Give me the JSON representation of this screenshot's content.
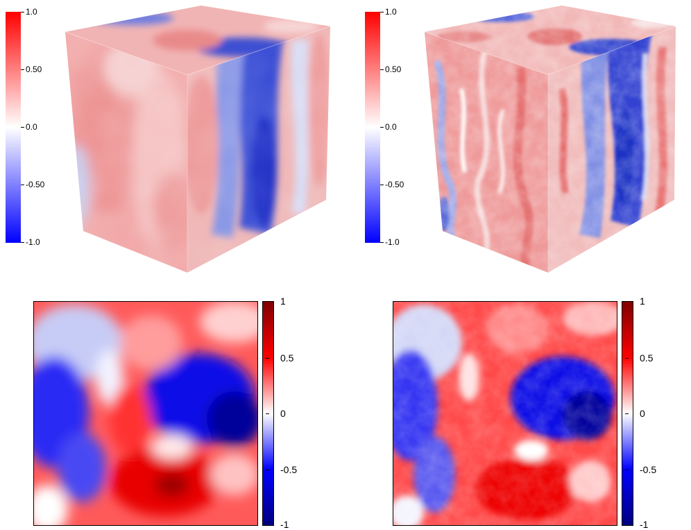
{
  "panels": [
    {
      "id": "top-left-cube",
      "kind": "3d-cube",
      "colorbar": {
        "ticks": [
          "1.0",
          "0.50",
          "0.0",
          "-0.50",
          "-1.0"
        ],
        "colors": [
          "#ff0000",
          "#ffffff",
          "#0000ff"
        ]
      }
    },
    {
      "id": "top-right-cube",
      "kind": "3d-cube",
      "colorbar": {
        "ticks": [
          "1.0",
          "0.50",
          "0.0",
          "-0.50",
          "-1.0"
        ],
        "colors": [
          "#ff0000",
          "#ffffff",
          "#0000ff"
        ]
      }
    },
    {
      "id": "bottom-left-slice",
      "kind": "2d-slice",
      "colorbar": {
        "ticks": [
          "1",
          "0.5",
          "0",
          "-0.5",
          "-1"
        ],
        "colors": [
          "#7f0000",
          "#ff0000",
          "#ffffff",
          "#0000ff",
          "#00007f"
        ]
      }
    },
    {
      "id": "bottom-right-slice",
      "kind": "2d-slice",
      "colorbar": {
        "ticks": [
          "1",
          "0.5",
          "0",
          "-0.5",
          "-1"
        ],
        "colors": [
          "#7f0000",
          "#ff0000",
          "#ffffff",
          "#0000ff",
          "#00007f"
        ]
      }
    }
  ]
}
